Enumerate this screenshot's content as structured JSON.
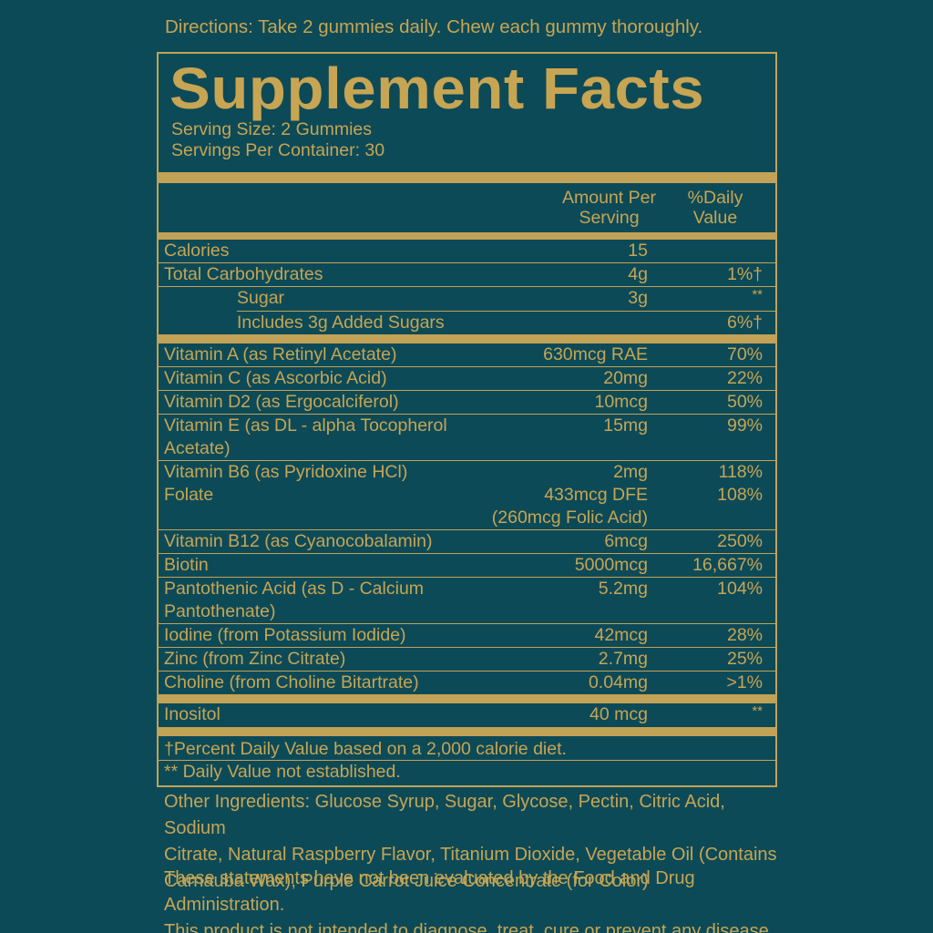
{
  "colors": {
    "background": "#0d4a58",
    "gold": "#c2a256",
    "text_gold": "#c7a552"
  },
  "directions": "Directions: Take 2 gummies daily. Chew each gummy thoroughly.",
  "panel": {
    "title": "Supplement Facts",
    "serving_size": "Serving Size: 2 Gummies",
    "servings_per_container": "Servings Per Container: 30",
    "columns": {
      "amount": "Amount Per\nServing",
      "daily_value": "%Daily\nValue"
    },
    "rows": [
      {
        "label": "Calories",
        "amount": "15",
        "dv": "",
        "indent": false,
        "sep": "thin"
      },
      {
        "label": "Total Carbohydrates",
        "amount": "4g",
        "dv": "1%†",
        "indent": false,
        "sep": "thin"
      },
      {
        "label": "Sugar",
        "amount": "3g",
        "dv": "**",
        "indent": true,
        "sep": "thin-indent"
      },
      {
        "label": "Includes 3g Added Sugars",
        "amount": "",
        "dv": "6%†",
        "indent": true,
        "sep": "thick"
      },
      {
        "label": "Vitamin A (as Retinyl Acetate)",
        "amount": "630mcg RAE",
        "dv": "70%",
        "indent": false,
        "sep": "thin"
      },
      {
        "label": "Vitamin C (as Ascorbic Acid)",
        "amount": "20mg",
        "dv": "22%",
        "indent": false,
        "sep": "thin"
      },
      {
        "label": "Vitamin D2 (as Ergocalciferol)",
        "amount": "10mcg",
        "dv": "50%",
        "indent": false,
        "sep": "thin"
      },
      {
        "label": "Vitamin E (as DL - alpha Tocopherol",
        "amount": "15mg",
        "dv": "99%",
        "indent": false,
        "sep": "none"
      },
      {
        "label": "Acetate)",
        "amount": "",
        "dv": "",
        "indent": false,
        "sep": "thin"
      },
      {
        "label": "Vitamin B6 (as Pyridoxine HCl)",
        "amount": "2mg",
        "dv": "118%",
        "indent": false,
        "sep": "none"
      },
      {
        "label": "Folate",
        "amount": "433mcg DFE",
        "dv": "108%",
        "indent": false,
        "sep": "none"
      },
      {
        "label": "",
        "amount": "(260mcg Folic Acid)",
        "dv": "",
        "indent": false,
        "sep": "thin"
      },
      {
        "label": "Vitamin B12 (as Cyanocobalamin)",
        "amount": "6mcg",
        "dv": "250%",
        "indent": false,
        "sep": "thin"
      },
      {
        "label": "Biotin",
        "amount": "5000mcg",
        "dv": "16,667%",
        "indent": false,
        "sep": "thin"
      },
      {
        "label": "Pantothenic Acid (as D - Calcium",
        "amount": "5.2mg",
        "dv": "104%",
        "indent": false,
        "sep": "none"
      },
      {
        "label": "Pantothenate)",
        "amount": "",
        "dv": "",
        "indent": false,
        "sep": "thin"
      },
      {
        "label": "Iodine (from Potassium Iodide)",
        "amount": "42mcg",
        "dv": "28%",
        "indent": false,
        "sep": "thin"
      },
      {
        "label": "Zinc (from Zinc Citrate)",
        "amount": "2.7mg",
        "dv": "25%",
        "indent": false,
        "sep": "thin"
      },
      {
        "label": "Choline (from Choline Bitartrate)",
        "amount": "0.04mg",
        "dv": ">1%",
        "indent": false,
        "sep": "thick"
      },
      {
        "label": "Inositol",
        "amount": "40 mcg",
        "dv": "**",
        "indent": false,
        "sep": "thick"
      }
    ],
    "footnotes": [
      "†Percent Daily Value based on a 2,000 calorie diet.",
      "** Daily Value not established."
    ]
  },
  "other_ingredients": "Other Ingredients: Glucose Syrup, Sugar, Glycose, Pectin, Citric Acid, Sodium\nCitrate, Natural Raspberry Flavor, Titanium Dioxide, Vegetable Oil (Contains\nCarnauba Wax), Purple Carrot Juice Concentrate (for Color)",
  "disclaimer": "These statements have not been evaluated by the Food and Drug Administration.\nThis product is not intended to diagnose, treat, cure or prevent any disease"
}
